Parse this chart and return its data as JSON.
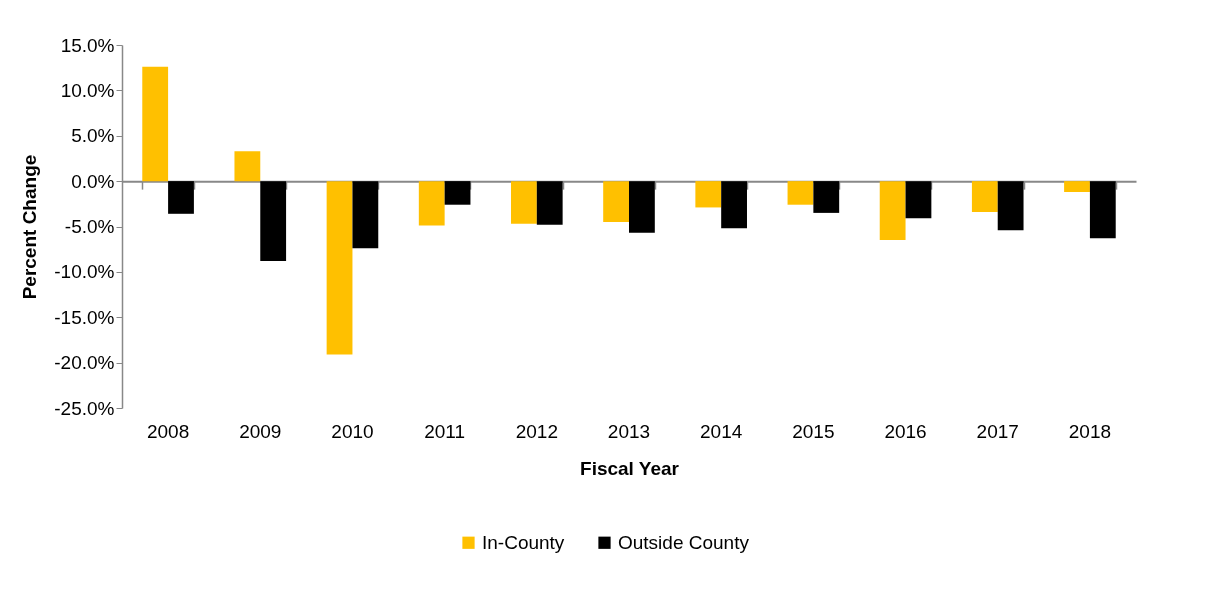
{
  "chart_data": {
    "type": "bar",
    "xlabel": "Fiscal Year",
    "ylabel": "Percent Change",
    "categories": [
      "2008",
      "2009",
      "2010",
      "2011",
      "2012",
      "2013",
      "2014",
      "2015",
      "2016",
      "2017",
      "2018"
    ],
    "series": [
      {
        "name": "In-County",
        "color": "#ffc000",
        "values": [
          12.6,
          3.3,
          -19.1,
          -4.9,
          -4.7,
          -4.5,
          -2.9,
          -2.6,
          -6.5,
          -3.4,
          -1.2
        ]
      },
      {
        "name": "Outside County",
        "color": "#000000",
        "values": [
          -3.6,
          -8.8,
          -7.4,
          -2.6,
          -4.8,
          -5.7,
          -5.2,
          -3.5,
          -4.1,
          -5.4,
          -6.3
        ]
      }
    ],
    "ylim": [
      -25,
      15
    ],
    "yticks": [
      {
        "value": -25,
        "label": "-25.0%"
      },
      {
        "value": -20,
        "label": "-20.0%"
      },
      {
        "value": -15,
        "label": "-15.0%"
      },
      {
        "value": -10,
        "label": "-10.0%"
      },
      {
        "value": -5,
        "label": "-5.0%"
      },
      {
        "value": 0,
        "label": "0.0%"
      },
      {
        "value": 5,
        "label": "5.0%"
      },
      {
        "value": 10,
        "label": "10.0%"
      },
      {
        "value": 15,
        "label": "15.0%"
      }
    ],
    "legend": "bottom"
  }
}
